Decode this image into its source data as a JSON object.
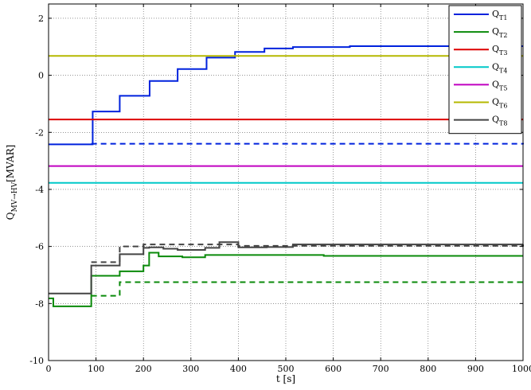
{
  "chart_data": {
    "type": "line",
    "xlabel": "t [s]",
    "ylabel": {
      "base": "Q",
      "subscript": "MV→HV",
      "unit": "[MVAR]"
    },
    "xlim": [
      0,
      1000
    ],
    "ylim": [
      -10,
      2.5
    ],
    "xticks": [
      0,
      100,
      200,
      300,
      400,
      500,
      600,
      700,
      800,
      900,
      1000
    ],
    "yticks": [
      -10,
      -8,
      -6,
      -4,
      -2,
      0,
      2
    ],
    "grid": true,
    "legend_position": "top-right",
    "series": [
      {
        "name": "QT1",
        "label_base": "Q",
        "label_sub": "T1",
        "color": "#0022dd",
        "style": "solid",
        "steps": [
          [
            0,
            -2.42
          ],
          [
            93,
            -1.27
          ],
          [
            150,
            -0.72
          ],
          [
            213,
            -0.2
          ],
          [
            272,
            0.22
          ],
          [
            333,
            0.62
          ],
          [
            393,
            0.82
          ],
          [
            455,
            0.94
          ],
          [
            515,
            0.99
          ],
          [
            635,
            1.02
          ],
          [
            1000,
            1.02
          ]
        ]
      },
      {
        "name": "QT1-dashed",
        "color": "#0022dd",
        "style": "dashed",
        "steps": [
          [
            90,
            -2.4
          ],
          [
            1000,
            -2.42
          ]
        ]
      },
      {
        "name": "QT2",
        "label_base": "Q",
        "label_sub": "T2",
        "color": "#0a8a0a",
        "style": "solid",
        "steps": [
          [
            0,
            -7.82
          ],
          [
            10,
            -8.1
          ],
          [
            90,
            -7.03
          ],
          [
            150,
            -6.87
          ],
          [
            200,
            -6.67
          ],
          [
            212,
            -6.22
          ],
          [
            232,
            -6.35
          ],
          [
            282,
            -6.38
          ],
          [
            330,
            -6.3
          ],
          [
            580,
            -6.33
          ],
          [
            1000,
            -6.33
          ]
        ]
      },
      {
        "name": "QT2-dashed",
        "color": "#0a8a0a",
        "style": "dashed",
        "steps": [
          [
            90,
            -7.73
          ],
          [
            150,
            -7.25
          ],
          [
            1000,
            -7.25
          ]
        ]
      },
      {
        "name": "QT3",
        "label_base": "Q",
        "label_sub": "T3",
        "color": "#dd0000",
        "style": "solid",
        "steps": [
          [
            0,
            -1.55
          ],
          [
            1000,
            -1.55
          ]
        ]
      },
      {
        "name": "QT4",
        "label_base": "Q",
        "label_sub": "T4",
        "color": "#00c8c8",
        "style": "solid",
        "steps": [
          [
            0,
            -3.77
          ],
          [
            1000,
            -3.77
          ]
        ]
      },
      {
        "name": "QT5",
        "label_base": "Q",
        "label_sub": "T5",
        "color": "#c000c0",
        "style": "solid",
        "steps": [
          [
            0,
            -3.18
          ],
          [
            1000,
            -3.18
          ]
        ]
      },
      {
        "name": "QT6",
        "label_base": "Q",
        "label_sub": "T6",
        "color": "#b5b800",
        "style": "solid",
        "steps": [
          [
            0,
            0.68
          ],
          [
            1000,
            0.68
          ]
        ]
      },
      {
        "name": "QT8",
        "label_base": "Q",
        "label_sub": "T8",
        "color": "#444444",
        "style": "solid",
        "steps": [
          [
            0,
            -7.65
          ],
          [
            90,
            -6.67
          ],
          [
            150,
            -6.27
          ],
          [
            200,
            -6.05
          ],
          [
            212,
            -6.03
          ],
          [
            242,
            -6.08
          ],
          [
            272,
            -6.12
          ],
          [
            330,
            -6.05
          ],
          [
            360,
            -5.85
          ],
          [
            400,
            -6.03
          ],
          [
            460,
            -6.02
          ],
          [
            515,
            -5.93
          ],
          [
            1000,
            -5.93
          ]
        ]
      },
      {
        "name": "QT8-dashed",
        "color": "#444444",
        "style": "dashed",
        "steps": [
          [
            90,
            -6.55
          ],
          [
            150,
            -6.0
          ],
          [
            200,
            -5.93
          ],
          [
            400,
            -5.98
          ],
          [
            1000,
            -5.93
          ]
        ]
      }
    ]
  }
}
